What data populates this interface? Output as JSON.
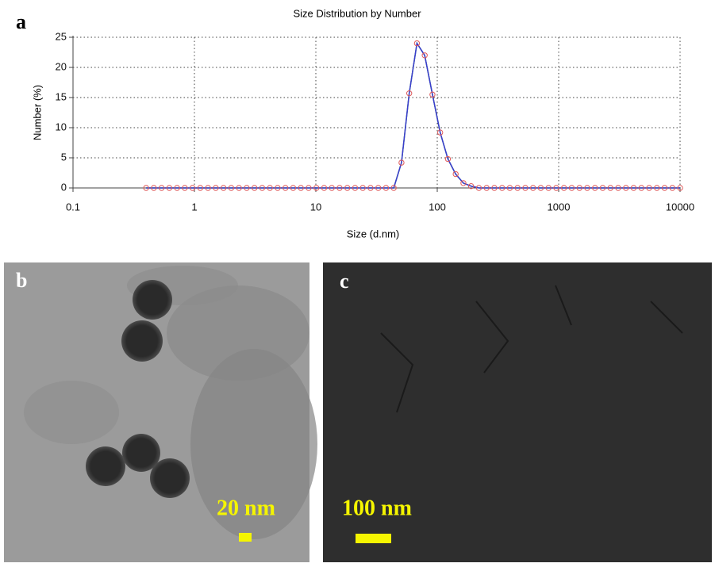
{
  "chart_data": {
    "type": "line",
    "title": "Size Distribution by Number",
    "x_label": "Size (d.nm)",
    "y_label": "Number (%)",
    "x_log": true,
    "grid": true,
    "xlim": [
      0.1,
      10000
    ],
    "xticks": [
      0.1,
      1,
      10,
      100,
      1000,
      10000
    ],
    "ylim": [
      0,
      25
    ],
    "yticks": [
      0,
      5,
      10,
      15,
      20,
      25
    ],
    "x": [
      0.4,
      0.4632,
      0.5365,
      0.6213,
      0.7195,
      0.8332,
      0.9649,
      1.117,
      1.294,
      1.499,
      1.736,
      2.01,
      2.328,
      2.696,
      3.122,
      3.615,
      4.187,
      4.849,
      5.615,
      6.503,
      7.531,
      8.721,
      10.1,
      11.7,
      13.54,
      15.69,
      18.17,
      21.04,
      24.36,
      28.21,
      32.67,
      37.84,
      43.82,
      50.75,
      58.77,
      68.06,
      78.82,
      91.28,
      105.7,
      122.4,
      141.8,
      164.2,
      190.1,
      220.2,
      255,
      295.3,
      342,
      396.1,
      458.7,
      531.2,
      615.1,
      712.4,
      825,
      955.4,
      1106,
      1281,
      1484,
      1718,
      1990,
      2305,
      2669,
      3091,
      3580,
      4145,
      4801,
      5560,
      6439,
      7456,
      8635,
      10000
    ],
    "series": [
      {
        "line_colors": [
          "#2e9e45",
          "#3b3bd0"
        ],
        "marker_color": "#e05a5a",
        "values": [
          0,
          0,
          0,
          0,
          0,
          0,
          0,
          0,
          0,
          0,
          0,
          0,
          0,
          0,
          0,
          0,
          0,
          0,
          0,
          0,
          0,
          0,
          0,
          0,
          0,
          0,
          0,
          0,
          0,
          0,
          0,
          0,
          0,
          4.2,
          15.7,
          24,
          22,
          15.5,
          9.2,
          4.8,
          2.3,
          0.8,
          0.3,
          0,
          0,
          0,
          0,
          0,
          0,
          0,
          0,
          0,
          0,
          0,
          0,
          0,
          0,
          0,
          0,
          0,
          0,
          0,
          0,
          0,
          0,
          0,
          0,
          0,
          0,
          0
        ]
      }
    ]
  },
  "panels": [
    {
      "label": "a"
    },
    {
      "label": "b",
      "scale_bar": "20 nm"
    },
    {
      "label": "c",
      "scale_bar": "100 nm"
    }
  ]
}
